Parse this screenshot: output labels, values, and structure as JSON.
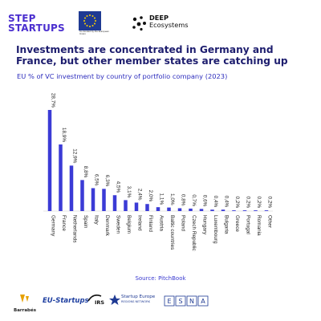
{
  "logos": {
    "stepup_line1": "STEP",
    "stepup_line2": "STARTUPS",
    "eu_caption": "Co-funded by the European Union",
    "deep_line1": "DEEP",
    "deep_line2": "Ecosystems",
    "barrabes": "Barrabés",
    "eu_startups": "EU-Startups",
    "irs": "IRS",
    "startup_europe_line1": "Startup Europe",
    "startup_europe_line2": "REGIONS NETWORK",
    "esna": [
      "E",
      "S",
      "N",
      "A"
    ]
  },
  "chart_data": {
    "type": "bar",
    "title": "Investments are concentrated in Germany and France, but other member states are catching up",
    "subtitle": "EU % of VC investment by country of portfolio company (2023)",
    "categories": [
      "Germany",
      "France",
      "Netherlands",
      "Spain",
      "Italy",
      "Denmark",
      "Sweden",
      "Belgium",
      "Ireland",
      "Finland",
      "Austria",
      "Baltic countries",
      "Poland",
      "Czech Republic",
      "Hungary",
      "Luxembourg",
      "Bulgaria",
      "Greece",
      "Portugal",
      "Romania",
      "Other"
    ],
    "values": [
      28.7,
      18.9,
      12.9,
      8.8,
      6.5,
      6.3,
      4.5,
      3.1,
      2.4,
      2.0,
      1.1,
      1.0,
      0.8,
      0.7,
      0.6,
      0.4,
      0.4,
      0.2,
      0.2,
      0.2,
      0.2
    ],
    "labels": [
      "28,7%",
      "18,9%",
      "12,9%",
      "8,8%",
      "6,5%",
      "6,3%",
      "4,5%",
      "3,1%",
      "2,4%",
      "2,0%",
      "1,1%",
      "1,0%",
      "0,8%",
      "0,7%",
      "0,6%",
      "0,4%",
      "0,4%",
      "0,2%",
      "0,2%",
      "0,2%",
      "0,2%"
    ],
    "ylim": [
      0,
      30
    ],
    "grid": false,
    "bar_color": "#3b3bd6",
    "source": "Source: PitchBook"
  }
}
